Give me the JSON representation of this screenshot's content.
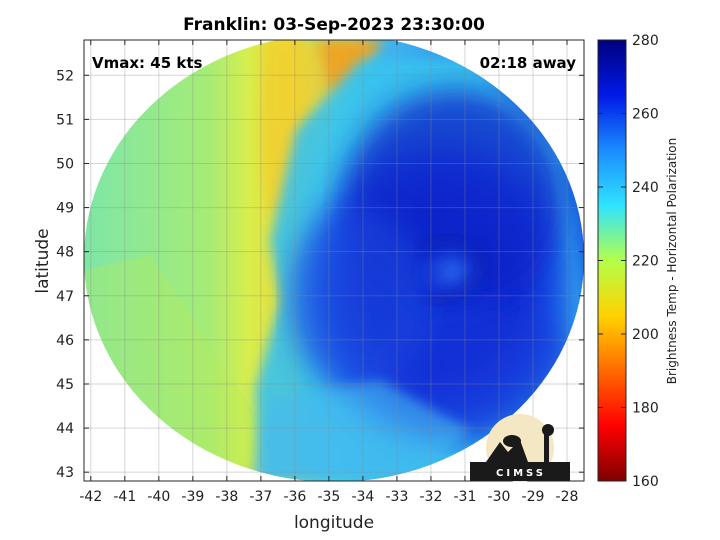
{
  "title": "Franklin: 03-Sep-2023 23:30:00",
  "annotations": {
    "vmax": "Vmax: 45 kts",
    "time_away": "02:18 away"
  },
  "logo_text": "CIMSS",
  "chart_data": {
    "type": "heatmap",
    "xlabel": "longitude",
    "ylabel": "latitude",
    "xlim": [
      -42.2,
      -27.5
    ],
    "ylim": [
      42.8,
      52.8
    ],
    "x_ticks": [
      -42,
      -41,
      -40,
      -39,
      -38,
      -37,
      -36,
      -35,
      -34,
      -33,
      -32,
      -31,
      -30,
      -29,
      -28
    ],
    "y_ticks": [
      43,
      44,
      45,
      46,
      47,
      48,
      49,
      50,
      51,
      52
    ],
    "grid": true,
    "colorbar": {
      "label": "Brightness Temp - Horizontal Polarization",
      "min": 160,
      "max": 280,
      "ticks": [
        160,
        180,
        200,
        220,
        240,
        260,
        280
      ]
    },
    "storm_center": {
      "lon": -32.3,
      "lat": 47.8
    }
  }
}
